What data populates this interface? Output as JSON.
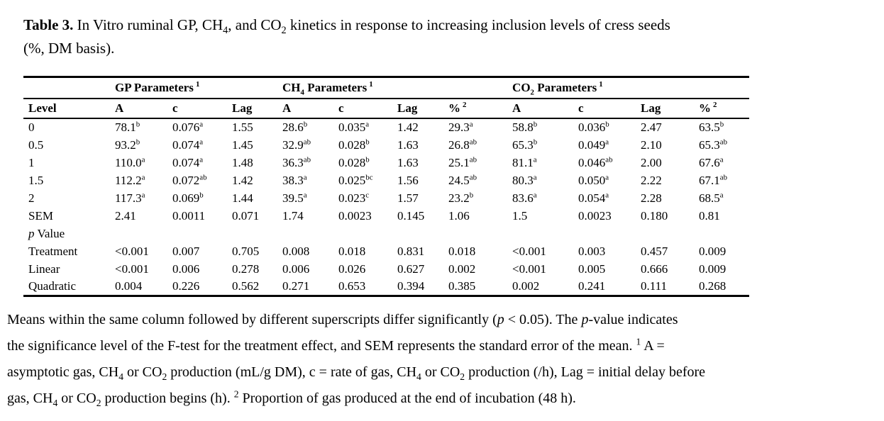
{
  "title": {
    "label": "Table 3.",
    "segments": [
      {
        "t": " In Vitro ruminal GP, CH"
      },
      {
        "sub": "4"
      },
      {
        "t": ", and CO"
      },
      {
        "sub": "2"
      },
      {
        "t": " kinetics in response to increasing inclusion levels of cress seeds"
      },
      {
        "br": true
      },
      {
        "t": "(%, DM basis)."
      }
    ]
  },
  "table": {
    "groups": [
      {
        "pre": "GP",
        "sub": "",
        "rest": " Parameters",
        "sup": "1",
        "span": 3
      },
      {
        "pre": "CH",
        "sub": "4",
        "rest": " Parameters",
        "sup": "1",
        "span": 4
      },
      {
        "pre": "CO",
        "sub": "2",
        "rest": " Parameters",
        "sup": "1",
        "span": 4
      }
    ],
    "columns": [
      "Level",
      "A",
      "c",
      "Lag",
      "A",
      "c",
      "Lag",
      "%^2",
      "A",
      "c",
      "Lag",
      "%^2"
    ],
    "rows": [
      {
        "label": "0",
        "cells": [
          "78.1^b",
          "0.076^a",
          "1.55",
          "28.6^b",
          "0.035^a",
          "1.42",
          "29.3^a",
          "58.8^b",
          "0.036^b",
          "2.47",
          "63.5^b"
        ]
      },
      {
        "label": "0.5",
        "cells": [
          "93.2^b",
          "0.074^a",
          "1.45",
          "32.9^ab",
          "0.028^b",
          "1.63",
          "26.8^ab",
          "65.3^b",
          "0.049^a",
          "2.10",
          "65.3^ab"
        ]
      },
      {
        "label": "1",
        "cells": [
          "110.0^a",
          "0.074^a",
          "1.48",
          "36.3^ab",
          "0.028^b",
          "1.63",
          "25.1^ab",
          "81.1^a",
          "0.046^ab",
          "2.00",
          "67.6^a"
        ]
      },
      {
        "label": "1.5",
        "cells": [
          "112.2^a",
          "0.072^ab",
          "1.42",
          "38.3^a",
          "0.025^bc",
          "1.56",
          "24.5^ab",
          "80.3^a",
          "0.050^a",
          "2.22",
          "67.1^ab"
        ]
      },
      {
        "label": "2",
        "cells": [
          "117.3^a",
          "0.069^b",
          "1.44",
          "39.5^a",
          "0.023^c",
          "1.57",
          "23.2^b",
          "83.6^a",
          "0.054^a",
          "2.28",
          "68.5^a"
        ]
      },
      {
        "label": "SEM",
        "cells": [
          "2.41",
          "0.0011",
          "0.071",
          "1.74",
          "0.0023",
          "0.145",
          "1.06",
          "1.5",
          "0.0023",
          "0.180",
          "0.81"
        ]
      },
      {
        "label_i": "p",
        "label": " Value",
        "cells": [
          "",
          "",
          "",
          "",
          "",
          "",
          "",
          "",
          "",
          "",
          ""
        ]
      },
      {
        "label": "Treatment",
        "cells": [
          "<0.001",
          "0.007",
          "0.705",
          "0.008",
          "0.018",
          "0.831",
          "0.018",
          "<0.001",
          "0.003",
          "0.457",
          "0.009"
        ]
      },
      {
        "label": "Linear",
        "cells": [
          "<0.001",
          "0.006",
          "0.278",
          "0.006",
          "0.026",
          "0.627",
          "0.002",
          "<0.001",
          "0.005",
          "0.666",
          "0.009"
        ]
      },
      {
        "label": "Quadratic",
        "cells": [
          "0.004",
          "0.226",
          "0.562",
          "0.271",
          "0.653",
          "0.394",
          "0.385",
          "0.002",
          "0.241",
          "0.111",
          "0.268"
        ]
      }
    ]
  },
  "footnote": {
    "segments": [
      {
        "t": "Means within the same column followed by different superscripts differ significantly ("
      },
      {
        "i": "p"
      },
      {
        "t": " < 0.05). The "
      },
      {
        "i": "p"
      },
      {
        "t": "-value indicates"
      },
      {
        "br": true
      },
      {
        "t": "the significance level of the F-test for the treatment effect, and SEM represents the standard error of the mean. "
      },
      {
        "sup": "1"
      },
      {
        "t": " A ="
      },
      {
        "br": true
      },
      {
        "t": "asymptotic gas, CH"
      },
      {
        "sub": "4"
      },
      {
        "t": " or CO"
      },
      {
        "sub": "2"
      },
      {
        "t": " production (mL/g DM), c = rate of gas, CH"
      },
      {
        "sub": "4"
      },
      {
        "t": " or CO"
      },
      {
        "sub": "2"
      },
      {
        "t": " production (/h), Lag = initial delay before"
      },
      {
        "br": true
      },
      {
        "t": "gas, CH"
      },
      {
        "sub": "4"
      },
      {
        "t": " or CO"
      },
      {
        "sub": "2"
      },
      {
        "t": " production begins (h). "
      },
      {
        "sup": "2"
      },
      {
        "t": " Proportion of gas produced at the end of incubation (48 h)."
      }
    ]
  }
}
